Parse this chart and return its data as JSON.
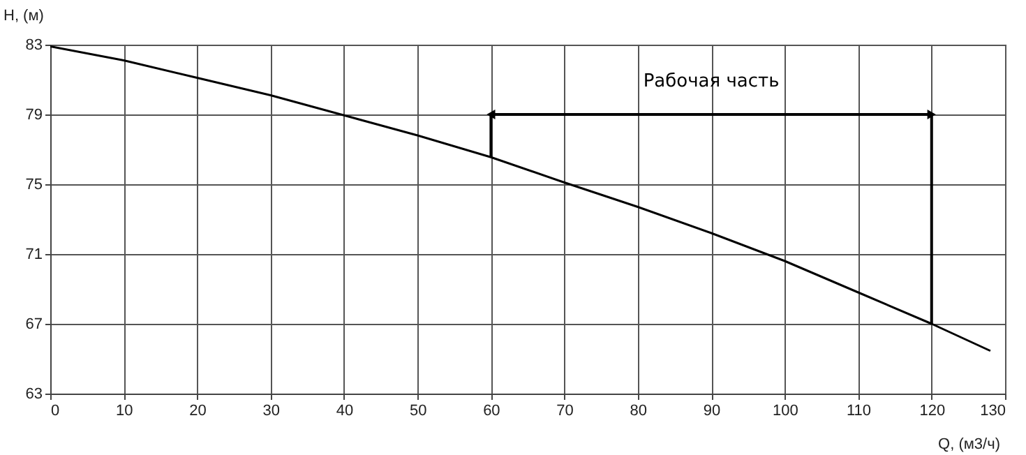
{
  "chart_data": {
    "type": "line",
    "xlabel": "Q, (м3/ч)",
    "ylabel": "H, (м)",
    "x": [
      0,
      10,
      20,
      30,
      40,
      50,
      60,
      70,
      80,
      90,
      100,
      110,
      120,
      128
    ],
    "series": [
      {
        "color": "#000000",
        "values": [
          82.9,
          82.1,
          81.1,
          80.1,
          78.95,
          77.8,
          76.55,
          75.1,
          73.7,
          72.2,
          70.6,
          68.8,
          67.0,
          65.45
        ]
      }
    ],
    "xlim": [
      0,
      130
    ],
    "xticks": [
      0,
      10,
      20,
      30,
      40,
      50,
      60,
      70,
      80,
      90,
      100,
      110,
      120,
      130
    ],
    "ylim": [
      63,
      83
    ],
    "yticks": [
      63,
      67,
      71,
      75,
      79,
      83
    ],
    "grid": true,
    "marker": "none",
    "line_style": "solid",
    "ref_lines": [
      {
        "axis": "x",
        "value": 60
      },
      {
        "axis": "x",
        "value": 120
      }
    ],
    "annotations": [
      "Рабочая часть"
    ]
  }
}
